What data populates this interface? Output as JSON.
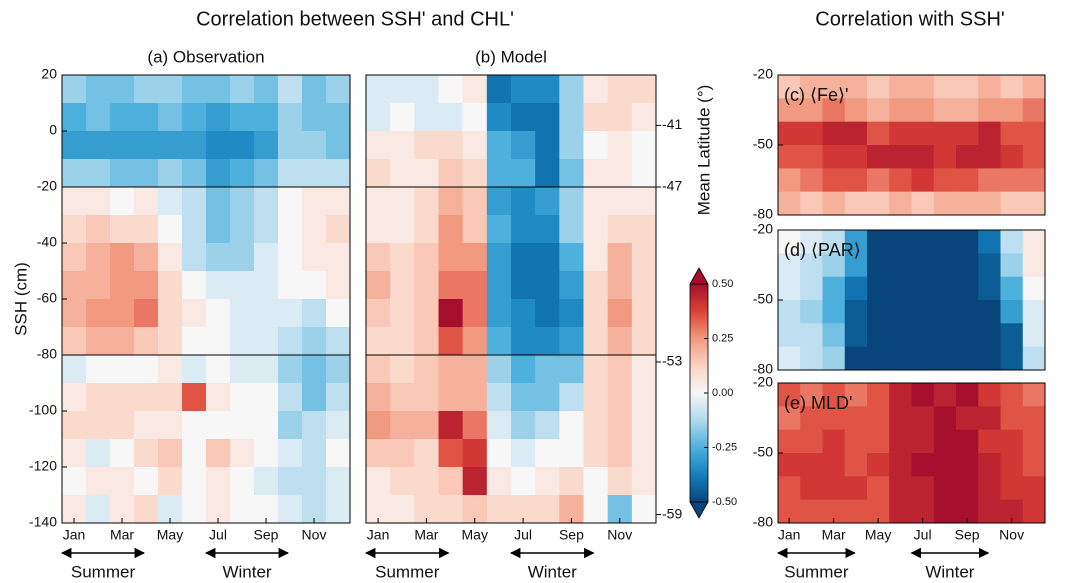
{
  "titles": [
    "Correlation between SSH' and CHL'",
    "Correlation with SSH'"
  ],
  "colorbar": {
    "lim": [
      -0.5,
      0.5
    ],
    "extend": "both",
    "colors": [
      "#08457a",
      "#1380bd",
      "#4eb1dd",
      "#b0d9ed",
      "#f7f7f7",
      "#fbd3c3",
      "#f19a80",
      "#dc4237",
      "#a50f2d"
    ],
    "ticks": [
      {
        "value": 0.5,
        "label": "0.50"
      },
      {
        "value": 0.25,
        "label": "0.25"
      },
      {
        "value": 0,
        "label": "0.00"
      },
      {
        "value": -0.25,
        "label": "-0.25"
      },
      {
        "value": -0.5,
        "label": "-0.50"
      }
    ]
  },
  "chart_data": [
    {
      "type": "heatmap",
      "title": "(a) Observation",
      "ylabel": "SSH (cm)",
      "categories": [
        "Jan",
        null,
        "Mar",
        null,
        "May",
        null,
        "Jul",
        null,
        "Sep",
        null,
        "Nov",
        null
      ],
      "y": [
        15,
        5,
        -5,
        -15,
        -25,
        -35,
        -45,
        -55,
        -65,
        -75,
        -85,
        -95,
        -105,
        -115,
        -125,
        -135
      ],
      "ylim": [
        -140,
        20
      ],
      "yticks": [
        20,
        0,
        -20,
        -40,
        -60,
        -80,
        -100,
        -120,
        -140
      ],
      "hlines": [
        -20,
        -80
      ],
      "seasons": [
        {
          "label": "Summer",
          "from": 0,
          "to": 2
        },
        {
          "label": "Winter",
          "from": 6,
          "to": 8
        }
      ],
      "values": [
        [
          -0.15,
          -0.2,
          -0.2,
          -0.15,
          -0.15,
          -0.2,
          -0.2,
          -0.15,
          -0.2,
          -0.1,
          -0.2,
          -0.15
        ],
        [
          -0.25,
          -0.2,
          -0.25,
          -0.25,
          -0.2,
          -0.25,
          -0.3,
          -0.25,
          -0.25,
          -0.15,
          -0.2,
          -0.2
        ],
        [
          -0.3,
          -0.3,
          -0.3,
          -0.3,
          -0.3,
          -0.3,
          -0.35,
          -0.35,
          -0.3,
          -0.15,
          -0.15,
          -0.2
        ],
        [
          -0.15,
          -0.15,
          -0.2,
          -0.2,
          -0.15,
          -0.2,
          -0.3,
          -0.25,
          -0.2,
          -0.1,
          -0.1,
          -0.1
        ],
        [
          0.05,
          0.05,
          0,
          0.05,
          -0.05,
          -0.1,
          -0.2,
          -0.15,
          -0.1,
          0,
          0.05,
          0.05
        ],
        [
          0.1,
          0.15,
          0.1,
          0.1,
          0,
          -0.1,
          -0.2,
          -0.15,
          -0.1,
          0,
          0.05,
          0.1
        ],
        [
          0.15,
          0.2,
          0.25,
          0.2,
          0.05,
          -0.1,
          -0.15,
          -0.15,
          -0.05,
          0,
          0.05,
          0.05
        ],
        [
          0.2,
          0.2,
          0.25,
          0.25,
          0.1,
          0,
          -0.05,
          -0.05,
          -0.05,
          0,
          0,
          0.05
        ],
        [
          0.2,
          0.25,
          0.25,
          0.3,
          0.1,
          0.05,
          0,
          -0.05,
          -0.05,
          -0.05,
          -0.1,
          0
        ],
        [
          0.15,
          0.2,
          0.2,
          0.15,
          0.1,
          0,
          0,
          -0.05,
          -0.05,
          -0.1,
          -0.15,
          -0.1
        ],
        [
          -0.05,
          0,
          0,
          0,
          0.05,
          -0.05,
          0,
          -0.05,
          -0.05,
          -0.15,
          -0.2,
          -0.15
        ],
        [
          0.05,
          0.1,
          0.1,
          0.1,
          0.1,
          0.35,
          0.05,
          0,
          0,
          -0.1,
          -0.2,
          -0.1
        ],
        [
          0.1,
          0.1,
          0.1,
          0.05,
          0.05,
          0,
          0,
          0,
          0,
          -0.15,
          -0.1,
          -0.05
        ],
        [
          0.05,
          -0.05,
          0,
          0.1,
          0.15,
          0,
          0.15,
          0.05,
          0,
          -0.05,
          -0.1,
          0
        ],
        [
          0,
          0.05,
          0.05,
          0,
          0.1,
          0,
          0.05,
          0,
          -0.05,
          -0.1,
          -0.1,
          -0.05
        ],
        [
          0.05,
          -0.05,
          0.05,
          0.1,
          -0.05,
          0,
          0.05,
          0,
          0,
          -0.05,
          -0.1,
          -0.05
        ]
      ]
    },
    {
      "type": "heatmap",
      "title": "(b) Model",
      "y2label": "Mean Latitude (°)",
      "categories": [
        "Jan",
        null,
        "Mar",
        null,
        "May",
        null,
        "Jul",
        null,
        "Sep",
        null,
        "Nov",
        null
      ],
      "y": [
        15,
        5,
        -5,
        -15,
        -25,
        -35,
        -45,
        -55,
        -65,
        -75,
        -85,
        -95,
        -105,
        -115,
        -125,
        -135
      ],
      "ylim": [
        -140,
        20
      ],
      "hlines": [
        -20,
        -80
      ],
      "lat_ticks": [
        {
          "ssh": 2,
          "lat": -41
        },
        {
          "ssh": -20,
          "lat": -47
        },
        {
          "ssh": -82.5,
          "lat": -53
        },
        {
          "ssh": -137,
          "lat": -59
        }
      ],
      "seasons": [
        {
          "label": "Summer",
          "from": 0,
          "to": 2
        },
        {
          "label": "Winter",
          "from": 6,
          "to": 8
        }
      ],
      "values": [
        [
          -0.05,
          -0.05,
          -0.05,
          0,
          0.05,
          -0.4,
          -0.35,
          -0.35,
          -0.15,
          0.05,
          0.1,
          0.1
        ],
        [
          -0.05,
          0,
          -0.05,
          -0.05,
          0,
          -0.35,
          -0.4,
          -0.4,
          -0.15,
          0.1,
          0.1,
          0.05
        ],
        [
          0.05,
          0.05,
          0.1,
          0.1,
          0.05,
          -0.25,
          -0.3,
          -0.4,
          -0.15,
          0,
          0.05,
          0
        ],
        [
          0.1,
          0.05,
          0.05,
          0.15,
          0.1,
          -0.25,
          -0.25,
          -0.4,
          -0.2,
          0.05,
          0.05,
          0
        ],
        [
          0.05,
          0.05,
          0.1,
          0.2,
          0.15,
          -0.3,
          -0.35,
          -0.3,
          -0.15,
          0.05,
          0.05,
          0.05
        ],
        [
          0.05,
          0.05,
          0.1,
          0.25,
          0.15,
          -0.25,
          -0.35,
          -0.35,
          -0.15,
          0.05,
          0.1,
          0.1
        ],
        [
          0.15,
          0.1,
          0.15,
          0.25,
          0.25,
          -0.3,
          -0.4,
          -0.4,
          -0.25,
          0.05,
          0.2,
          0.1
        ],
        [
          0.2,
          0.1,
          0.15,
          0.3,
          0.3,
          -0.3,
          -0.4,
          -0.4,
          -0.3,
          0.1,
          0.2,
          0.1
        ],
        [
          0.15,
          0.1,
          0.15,
          0.5,
          0.3,
          -0.3,
          -0.35,
          -0.4,
          -0.35,
          0.1,
          0.25,
          0.1
        ],
        [
          0.1,
          0.1,
          0.15,
          0.35,
          0.25,
          -0.25,
          -0.35,
          -0.35,
          -0.3,
          0.1,
          0.2,
          0.1
        ],
        [
          0.15,
          0.1,
          0.15,
          0.2,
          0.2,
          -0.15,
          -0.25,
          -0.2,
          -0.2,
          0.1,
          0.15,
          0.05
        ],
        [
          0.2,
          0.15,
          0.15,
          0.2,
          0.2,
          -0.1,
          -0.2,
          -0.2,
          -0.1,
          0.1,
          0.15,
          0.05
        ],
        [
          0.25,
          0.2,
          0.2,
          0.45,
          0.3,
          -0.05,
          -0.15,
          -0.1,
          0,
          0.1,
          0.15,
          0.05
        ],
        [
          0.15,
          0.15,
          0.1,
          0.35,
          0.4,
          0,
          -0.05,
          0,
          0,
          0.1,
          0.15,
          0.05
        ],
        [
          0.05,
          0.1,
          0.1,
          0.15,
          0.45,
          0.05,
          0,
          0.05,
          0.1,
          0,
          0.1,
          0.05
        ],
        [
          0.05,
          0.05,
          0.1,
          0.1,
          0.15,
          0.1,
          0.1,
          0.1,
          0.2,
          0,
          -0.2,
          0
        ]
      ]
    },
    {
      "type": "heatmap",
      "label": "(c) ⟨Fe⟩'",
      "y": [
        -25,
        -35,
        -45,
        -55,
        -65,
        -75
      ],
      "ylim": [
        -80,
        -20
      ],
      "yticks": [
        -20,
        -50,
        -80
      ],
      "values": [
        [
          0.15,
          0.2,
          0.2,
          0.2,
          0.15,
          0.2,
          0.2,
          0.15,
          0.15,
          0.2,
          0.15,
          0.2
        ],
        [
          0.25,
          0.25,
          0.3,
          0.25,
          0.2,
          0.25,
          0.25,
          0.2,
          0.2,
          0.25,
          0.25,
          0.3
        ],
        [
          0.4,
          0.4,
          0.45,
          0.45,
          0.35,
          0.4,
          0.4,
          0.4,
          0.4,
          0.45,
          0.35,
          0.35
        ],
        [
          0.35,
          0.35,
          0.4,
          0.4,
          0.45,
          0.45,
          0.45,
          0.4,
          0.45,
          0.45,
          0.4,
          0.35
        ],
        [
          0.25,
          0.3,
          0.35,
          0.35,
          0.3,
          0.35,
          0.4,
          0.35,
          0.35,
          0.3,
          0.3,
          0.3
        ],
        [
          0.2,
          0.15,
          0.2,
          0.15,
          0.15,
          0.2,
          0.15,
          0.2,
          0.2,
          0.2,
          0.15,
          0.15
        ]
      ]
    },
    {
      "type": "heatmap",
      "label": "(d) ⟨PAR⟩",
      "y": [
        -25,
        -35,
        -45,
        -55,
        -65,
        -75
      ],
      "ylim": [
        -80,
        -20
      ],
      "yticks": [
        -20,
        -50,
        -80
      ],
      "values": [
        [
          0,
          -0.05,
          -0.1,
          -0.3,
          -0.5,
          -0.5,
          -0.5,
          -0.5,
          -0.5,
          -0.4,
          -0.1,
          0.05
        ],
        [
          -0.05,
          -0.1,
          -0.15,
          -0.3,
          -0.5,
          -0.5,
          -0.5,
          -0.5,
          -0.5,
          -0.45,
          -0.15,
          0.05
        ],
        [
          -0.05,
          -0.1,
          -0.25,
          -0.4,
          -0.5,
          -0.5,
          -0.5,
          -0.5,
          -0.5,
          -0.45,
          -0.25,
          0
        ],
        [
          -0.1,
          -0.15,
          -0.25,
          -0.45,
          -0.5,
          -0.5,
          -0.5,
          -0.5,
          -0.5,
          -0.5,
          -0.3,
          -0.05
        ],
        [
          -0.1,
          -0.1,
          -0.2,
          -0.45,
          -0.5,
          -0.5,
          -0.5,
          -0.5,
          -0.5,
          -0.5,
          -0.45,
          -0.05
        ],
        [
          -0.05,
          -0.1,
          -0.15,
          -0.5,
          -0.5,
          -0.5,
          -0.5,
          -0.5,
          -0.5,
          -0.5,
          -0.45,
          -0.1
        ]
      ]
    },
    {
      "type": "heatmap",
      "label": "(e) MLD'",
      "categories": [
        "Jan",
        null,
        "Mar",
        null,
        "May",
        null,
        "Jul",
        null,
        "Sep",
        null,
        "Nov",
        null
      ],
      "y": [
        -25,
        -35,
        -45,
        -55,
        -65,
        -75
      ],
      "ylim": [
        -80,
        -20
      ],
      "yticks": [
        -20,
        -50,
        -80
      ],
      "seasons": [
        {
          "label": "Summer",
          "from": 0,
          "to": 2
        },
        {
          "label": "Winter",
          "from": 6,
          "to": 8
        }
      ],
      "values": [
        [
          0.35,
          0.3,
          0.35,
          0.3,
          0.35,
          0.45,
          0.5,
          0.45,
          0.5,
          0.4,
          0.35,
          0.3
        ],
        [
          0.3,
          0.35,
          0.35,
          0.35,
          0.35,
          0.45,
          0.45,
          0.5,
          0.45,
          0.45,
          0.35,
          0.35
        ],
        [
          0.35,
          0.35,
          0.4,
          0.35,
          0.35,
          0.45,
          0.45,
          0.5,
          0.5,
          0.4,
          0.4,
          0.35
        ],
        [
          0.4,
          0.4,
          0.4,
          0.35,
          0.4,
          0.45,
          0.5,
          0.5,
          0.5,
          0.45,
          0.4,
          0.35
        ],
        [
          0.35,
          0.4,
          0.4,
          0.4,
          0.35,
          0.45,
          0.45,
          0.5,
          0.5,
          0.45,
          0.4,
          0.4
        ],
        [
          0.35,
          0.35,
          0.35,
          0.35,
          0.35,
          0.45,
          0.45,
          0.5,
          0.5,
          0.45,
          0.45,
          0.4
        ]
      ]
    }
  ]
}
